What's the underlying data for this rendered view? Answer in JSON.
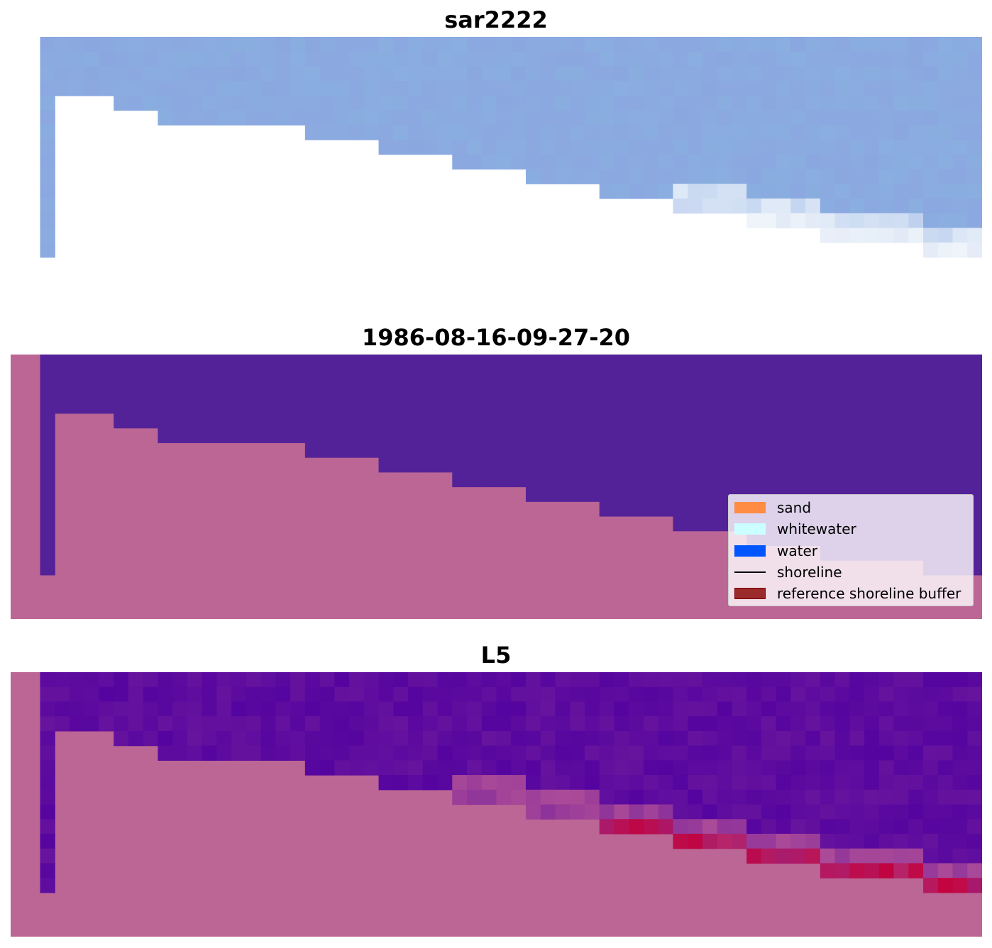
{
  "panels": [
    {
      "id": "rgb",
      "title": "sar2222"
    },
    {
      "id": "classified",
      "title": "1986-08-16-09-27-20"
    },
    {
      "id": "index",
      "title": "L5"
    }
  ],
  "legend": {
    "items": [
      {
        "label": "sand",
        "color": "#ff8c42",
        "kind": "patch"
      },
      {
        "label": "whitewater",
        "color": "#ccffff",
        "kind": "patch"
      },
      {
        "label": "water",
        "color": "#0055ff",
        "kind": "patch"
      },
      {
        "label": "shoreline",
        "color": "#000000",
        "kind": "line"
      },
      {
        "label": "reference shoreline buffer",
        "color": "#9b2a2a",
        "kind": "patch"
      }
    ]
  },
  "colors": {
    "land_mask": "#bb6694",
    "water_class": "#542298",
    "rgb_water": "#8aaee0",
    "index_water": "#66139e",
    "index_high": "#c4003a"
  }
}
